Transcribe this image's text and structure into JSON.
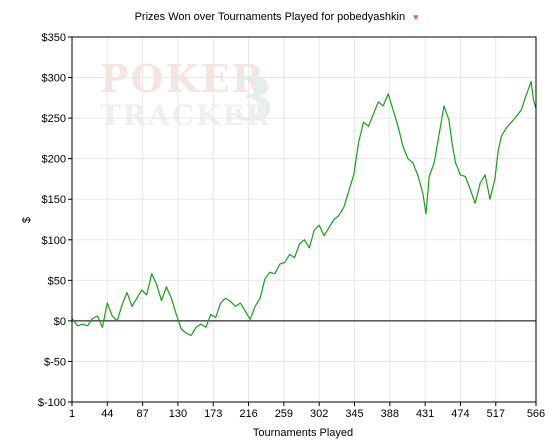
{
  "chart_data": {
    "type": "line",
    "title": "Prizes Won over Tournaments Played for pobedyashkin",
    "xlabel": "Tournaments Played",
    "ylabel": "$",
    "xlim": [
      1,
      566
    ],
    "ylim": [
      -100,
      350
    ],
    "x_ticks": [
      "1",
      "44",
      "87",
      "130",
      "173",
      "216",
      "259",
      "302",
      "345",
      "388",
      "431",
      "474",
      "517",
      "566"
    ],
    "y_ticks": [
      "$350",
      "$300",
      "$250",
      "$200",
      "$150",
      "$100",
      "$50",
      "$0",
      "$-50",
      "$-100"
    ],
    "grid": true,
    "line_color": "#1a9e1a",
    "zero_line_color": "#000000",
    "watermark": {
      "line1": "POKER",
      "numeral": "3",
      "line2": "TRACKER"
    },
    "series": [
      {
        "x": [
          1,
          8,
          14,
          20,
          26,
          32,
          38,
          44,
          50,
          56,
          62,
          68,
          74,
          80,
          86,
          92,
          98,
          104,
          110,
          116,
          122,
          128,
          134,
          140,
          146,
          152,
          158,
          164,
          170,
          176,
          182,
          188,
          194,
          200,
          206,
          212,
          218,
          224,
          230,
          236,
          242,
          248,
          254,
          260,
          266,
          272,
          278,
          284,
          290,
          296,
          302,
          308,
          314,
          320,
          326,
          332,
          338,
          344,
          350,
          356,
          362,
          368,
          374,
          380,
          386,
          392,
          398,
          404,
          410,
          416,
          422,
          428,
          432,
          436,
          442,
          448,
          454,
          460,
          464,
          468,
          474,
          480,
          486,
          492,
          498,
          504,
          510,
          516,
          520,
          524,
          530,
          536,
          542,
          548,
          554,
          560,
          563,
          566
        ],
        "values": [
          3,
          -6,
          -4,
          -6,
          3,
          6,
          -8,
          22,
          6,
          0,
          20,
          35,
          18,
          28,
          38,
          32,
          58,
          45,
          25,
          42,
          28,
          8,
          -10,
          -15,
          -18,
          -8,
          -4,
          -8,
          8,
          4,
          22,
          28,
          24,
          18,
          22,
          12,
          2,
          18,
          28,
          52,
          60,
          58,
          70,
          72,
          82,
          78,
          95,
          100,
          90,
          112,
          118,
          105,
          115,
          125,
          130,
          140,
          160,
          180,
          220,
          245,
          240,
          255,
          270,
          265,
          280,
          260,
          240,
          215,
          200,
          195,
          180,
          158,
          132,
          178,
          195,
          230,
          265,
          248,
          218,
          195,
          180,
          178,
          162,
          145,
          170,
          180,
          150,
          175,
          210,
          228,
          238,
          245,
          252,
          260,
          278,
          295,
          272,
          262
        ]
      }
    ]
  }
}
